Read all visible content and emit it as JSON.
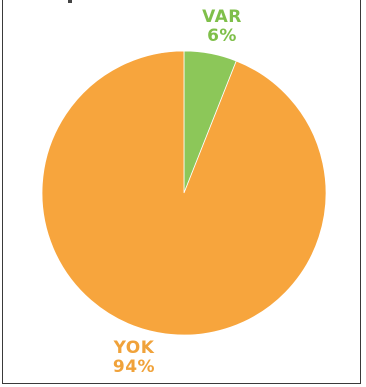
{
  "chart_data": {
    "type": "pie",
    "title": "",
    "slices": [
      {
        "label": "VAR",
        "value": 6,
        "display": "6%",
        "color": "#8cc759"
      },
      {
        "label": "YOK",
        "value": 94,
        "display": "94%",
        "color": "#f7a53d"
      }
    ],
    "start_angle_deg": 0,
    "direction": "clockwise",
    "legend": "none"
  }
}
